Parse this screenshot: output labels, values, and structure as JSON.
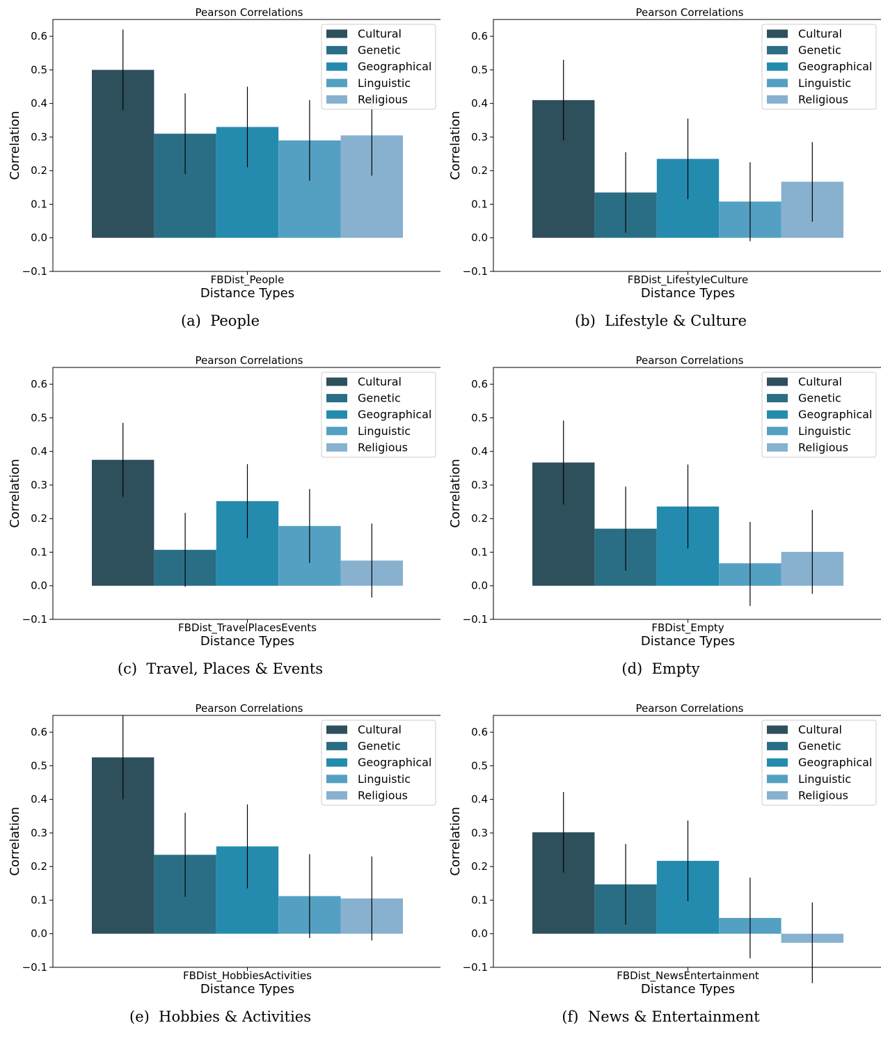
{
  "series_colors": {
    "Cultural": "#2e4f5c",
    "Genetic": "#2a6e86",
    "Geographical": "#248baf",
    "Linguistic": "#54a0c2",
    "Religious": "#87b1cf"
  },
  "chart_data": [
    {
      "type": "bar",
      "title": "Pearson Correlations",
      "xlabel": "Distance Types",
      "ylabel": "Correlation",
      "category": "FBDist_People",
      "caption": "(a)  People",
      "ylim": [
        -0.1,
        0.65
      ],
      "yticks": [
        -0.1,
        0.0,
        0.1,
        0.2,
        0.3,
        0.4,
        0.5,
        0.6
      ],
      "legend_position": "top-right",
      "series": [
        {
          "name": "Cultural",
          "value": 0.5,
          "err_low": 0.38,
          "err_high": 0.62
        },
        {
          "name": "Genetic",
          "value": 0.31,
          "err_low": 0.19,
          "err_high": 0.43
        },
        {
          "name": "Geographical",
          "value": 0.33,
          "err_low": 0.21,
          "err_high": 0.45
        },
        {
          "name": "Linguistic",
          "value": 0.29,
          "err_low": 0.17,
          "err_high": 0.41
        },
        {
          "name": "Religious",
          "value": 0.305,
          "err_low": 0.185,
          "err_high": 0.425
        }
      ]
    },
    {
      "type": "bar",
      "title": "Pearson Correlations",
      "xlabel": "Distance Types",
      "ylabel": "Correlation",
      "category": "FBDist_LifestyleCulture",
      "caption": "(b)  Lifestyle & Culture",
      "ylim": [
        -0.1,
        0.65
      ],
      "yticks": [
        -0.1,
        0.0,
        0.1,
        0.2,
        0.3,
        0.4,
        0.5,
        0.6
      ],
      "legend_position": "top-right",
      "series": [
        {
          "name": "Cultural",
          "value": 0.41,
          "err_low": 0.29,
          "err_high": 0.53
        },
        {
          "name": "Genetic",
          "value": 0.135,
          "err_low": 0.015,
          "err_high": 0.255
        },
        {
          "name": "Geographical",
          "value": 0.235,
          "err_low": 0.115,
          "err_high": 0.355
        },
        {
          "name": "Linguistic",
          "value": 0.108,
          "err_low": -0.01,
          "err_high": 0.225
        },
        {
          "name": "Religious",
          "value": 0.167,
          "err_low": 0.048,
          "err_high": 0.285
        }
      ]
    },
    {
      "type": "bar",
      "title": "Pearson Correlations",
      "xlabel": "Distance Types",
      "ylabel": "Correlation",
      "category": "FBDist_TravelPlacesEvents",
      "caption": "(c)  Travel, Places & Events",
      "ylim": [
        -0.1,
        0.65
      ],
      "yticks": [
        -0.1,
        0.0,
        0.1,
        0.2,
        0.3,
        0.4,
        0.5,
        0.6
      ],
      "legend_position": "top-right",
      "series": [
        {
          "name": "Cultural",
          "value": 0.375,
          "err_low": 0.265,
          "err_high": 0.485
        },
        {
          "name": "Genetic",
          "value": 0.107,
          "err_low": -0.003,
          "err_high": 0.217
        },
        {
          "name": "Geographical",
          "value": 0.252,
          "err_low": 0.142,
          "err_high": 0.362
        },
        {
          "name": "Linguistic",
          "value": 0.178,
          "err_low": 0.068,
          "err_high": 0.288
        },
        {
          "name": "Religious",
          "value": 0.075,
          "err_low": -0.035,
          "err_high": 0.185
        }
      ]
    },
    {
      "type": "bar",
      "title": "Pearson Correlations",
      "xlabel": "Distance Types",
      "ylabel": "Correlation",
      "category": "FBDist_Empty",
      "caption": "(d)  Empty",
      "ylim": [
        -0.1,
        0.65
      ],
      "yticks": [
        -0.1,
        0.0,
        0.1,
        0.2,
        0.3,
        0.4,
        0.5,
        0.6
      ],
      "legend_position": "top-right",
      "series": [
        {
          "name": "Cultural",
          "value": 0.367,
          "err_low": 0.242,
          "err_high": 0.492
        },
        {
          "name": "Genetic",
          "value": 0.17,
          "err_low": 0.045,
          "err_high": 0.295
        },
        {
          "name": "Geographical",
          "value": 0.236,
          "err_low": 0.111,
          "err_high": 0.361
        },
        {
          "name": "Linguistic",
          "value": 0.067,
          "err_low": -0.06,
          "err_high": 0.19
        },
        {
          "name": "Religious",
          "value": 0.101,
          "err_low": -0.024,
          "err_high": 0.226
        }
      ]
    },
    {
      "type": "bar",
      "title": "Pearson Correlations",
      "xlabel": "Distance Types",
      "ylabel": "Correlation",
      "category": "FBDist_HobbiesActivities",
      "caption": "(e)  Hobbies & Activities",
      "ylim": [
        -0.1,
        0.65
      ],
      "yticks": [
        -0.1,
        0.0,
        0.1,
        0.2,
        0.3,
        0.4,
        0.5,
        0.6
      ],
      "legend_position": "top-right",
      "series": [
        {
          "name": "Cultural",
          "value": 0.525,
          "err_low": 0.4,
          "err_high": 0.65
        },
        {
          "name": "Genetic",
          "value": 0.235,
          "err_low": 0.11,
          "err_high": 0.36
        },
        {
          "name": "Geographical",
          "value": 0.26,
          "err_low": 0.135,
          "err_high": 0.385
        },
        {
          "name": "Linguistic",
          "value": 0.112,
          "err_low": -0.013,
          "err_high": 0.237
        },
        {
          "name": "Religious",
          "value": 0.105,
          "err_low": -0.02,
          "err_high": 0.23
        }
      ]
    },
    {
      "type": "bar",
      "title": "Pearson Correlations",
      "xlabel": "Distance Types",
      "ylabel": "Correlation",
      "category": "FBDist_NewsEntertainment",
      "caption": "(f)  News & Entertainment",
      "ylim": [
        -0.1,
        0.65
      ],
      "yticks": [
        -0.1,
        0.0,
        0.1,
        0.2,
        0.3,
        0.4,
        0.5,
        0.6
      ],
      "legend_position": "top-right",
      "series": [
        {
          "name": "Cultural",
          "value": 0.302,
          "err_low": 0.182,
          "err_high": 0.422
        },
        {
          "name": "Genetic",
          "value": 0.147,
          "err_low": 0.027,
          "err_high": 0.267
        },
        {
          "name": "Geographical",
          "value": 0.217,
          "err_low": 0.097,
          "err_high": 0.337
        },
        {
          "name": "Linguistic",
          "value": 0.047,
          "err_low": -0.073,
          "err_high": 0.167
        },
        {
          "name": "Religious",
          "value": -0.027,
          "err_low": -0.147,
          "err_high": 0.093
        }
      ]
    }
  ]
}
